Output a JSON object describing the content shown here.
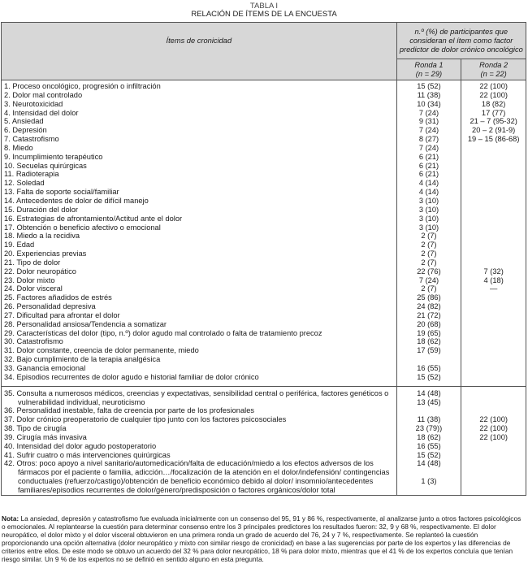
{
  "caption": {
    "label": "TABLA I",
    "title": "RELACIÓN DE ÍTEMS DE LA ENCUESTA"
  },
  "header": {
    "items_col": "Ítems de cronicidad",
    "group_col": "n.º  (%) de participantes que consideran el ítem como factor predictor de dolor crónico oncológico",
    "ronda1": "Ronda 1\n(n = 29)",
    "ronda2": "Ronda 2\n(n = 22)"
  },
  "section1": [
    {
      "item": "1.  Proceso oncológico, progresión o infiltración",
      "r1": "15 (52)",
      "r2": "22 (100)"
    },
    {
      "item": "2.  Dolor mal controlado",
      "r1": "11 (38)",
      "r2": "22 (100)"
    },
    {
      "item": "3.  Neurotoxicidad",
      "r1": "10 (34)",
      "r2": "18 (82)"
    },
    {
      "item": "4.  Intensidad del dolor",
      "r1": "7 (24)",
      "r2": "17 (77)"
    },
    {
      "item": "5.  Ansiedad",
      "r1": "9 (31)",
      "r2": "21 – 7 (95-32)"
    },
    {
      "item": "6.  Depresión",
      "r1": "7 (24)",
      "r2": "20 – 2 (91-9)"
    },
    {
      "item": "7.  Catastrofismo",
      "r1": "8 (27)",
      "r2": "19 – 15 (86-68)"
    },
    {
      "item": "8.  Miedo",
      "r1": "7 (24)",
      "r2": ""
    },
    {
      "item": "9.  Incumplimiento terapéutico",
      "r1": "6 (21)",
      "r2": ""
    },
    {
      "item": "10.  Secuelas quirúrgicas",
      "r1": "6 (21)",
      "r2": ""
    },
    {
      "item": "11.  Radioterapia",
      "r1": "6 (21)",
      "r2": ""
    },
    {
      "item": "12.  Soledad",
      "r1": "4 (14)",
      "r2": ""
    },
    {
      "item": "13.  Falta de soporte social/familiar",
      "r1": "4 (14)",
      "r2": ""
    },
    {
      "item": "14.  Antecedentes de dolor de difícil manejo",
      "r1": "3 (10)",
      "r2": ""
    },
    {
      "item": "15.  Duración del dolor",
      "r1": "3 (10)",
      "r2": ""
    },
    {
      "item": "16.  Estrategias de afrontamiento/Actitud ante el dolor",
      "r1": "3 (10)",
      "r2": ""
    },
    {
      "item": "17.  Obtención o beneficio afectivo o emocional",
      "r1": "3 (10)",
      "r2": ""
    },
    {
      "item": "18.  Miedo a la recidiva",
      "r1": "2 (7)",
      "r2": ""
    },
    {
      "item": "19.  Edad",
      "r1": "2 (7)",
      "r2": ""
    },
    {
      "item": "20.  Experiencias previas",
      "r1": "2 (7)",
      "r2": ""
    },
    {
      "item": "21.  Tipo de dolor",
      "r1": "2 (7)",
      "r2": ""
    },
    {
      "item": "22.  Dolor neuropático",
      "r1": "22 (76)",
      "r2": "7 (32)"
    },
    {
      "item": "23.  Dolor mixto",
      "r1": "7 (24)",
      "r2": "4 (18)"
    },
    {
      "item": "24.  Dolor visceral",
      "r1": "2 (7)",
      "r2": "—"
    },
    {
      "item": "25.  Factores añadidos de estrés",
      "r1": "25 (86)",
      "r2": ""
    },
    {
      "item": "26.  Personalidad depresiva",
      "r1": "24 (82)",
      "r2": ""
    },
    {
      "item": "27.  Dificultad para afrontar el dolor",
      "r1": "21 (72)",
      "r2": ""
    },
    {
      "item": "28.  Personalidad ansiosa/Tendencia a somatizar",
      "r1": "20 (68)",
      "r2": ""
    },
    {
      "item": "29.  Características del dolor (tipo, n.º) dolor agudo mal controlado o falta de tratamiento precoz",
      "r1": "19 (65)",
      "r2": ""
    },
    {
      "item": "30.  Catastrofismo",
      "r1": "18 (62)",
      "r2": ""
    },
    {
      "item": "31.  Dolor constante, creencia de dolor permanente, miedo",
      "r1": "17 (59)",
      "r2": ""
    },
    {
      "item": "32.  Bajo cumplimiento de la terapia analgésica",
      "r1": "",
      "r2": ""
    },
    {
      "item": "33.  Ganancia emocional",
      "r1": "16 (55)",
      "r2": ""
    },
    {
      "item": "34.  Episodios recurrentes de dolor agudo e historial familiar de dolor crónico",
      "r1": "15 (52)",
      "r2": ""
    }
  ],
  "section2": [
    {
      "item": "35.  Consulta a numerosos médicos, creencias y expectativas, sensibilidad central o periférica, factores genéticos o vulnerabilidad individual, neuroticismo",
      "r1": "14 (48)\n13 (45)",
      "r2": ""
    },
    {
      "item": "36.  Personalidad inestable, falta de creencia por parte de los profesionales",
      "r1": "",
      "r2": ""
    },
    {
      "item": "37.  Dolor crónico preoperatorio de cualquier tipo junto con los factores psicosociales",
      "r1": "11 (38)",
      "r2": "22 (100)"
    },
    {
      "item": "38.  Tipo de cirugía",
      "r1": "23 (79))",
      "r2": "22 (100)"
    },
    {
      "item": "39.  Cirugía más invasiva",
      "r1": "18 (62)",
      "r2": "22 (100)"
    },
    {
      "item": "40.  Intensidad del dolor agudo postoperatorio",
      "r1": "16 (55)",
      "r2": ""
    },
    {
      "item": "41.  Sufrir cuatro o más intervenciones quirúrgicas",
      "r1": "15 (52)",
      "r2": ""
    },
    {
      "item": "42.  Otros: poco apoyo a nivel sanitario/automedicación/falta de educación/miedo a los efectos adversos de los fármacos por el paciente o familia, adicción…/focalización de la atención en el dolor/indefensión/ contingencias conductuales (refuerzo/castigo)/obtención de beneficio económico debido al dolor/ insomnio/antecedentes familiares/episodios  recurrentes de dolor/género/predisposición o factores orgánicos/dolor total",
      "r1": "14 (48)\n\n1 (3)",
      "r2": ""
    }
  ],
  "note": {
    "label": "Nota:",
    "text": " La ansiedad, depresión y catastrofismo fue evaluada inicialmente con un consenso del 95, 91 y 86 %, respectivamente, al analizarse junto a otros factores psicológicos o emocionales. Al replantearse la cuestión para determinar consenso entre los 3 principales predictores los resultados fueron: 32, 9 y 68 %, respectivamente. El dolor neuropático, el dolor mixto y el dolor visceral obtuvieron en una primera ronda un grado de acuerdo del 76, 24 y 7 %, respectivamente. Se replanteó la cuestión proporcionando una opción alternativa (dolor neuropático y mixto con similar riesgo de cronicidad) en base a las sugerencias por parte de los expertos y las diferencias de criterios entre ellos. De este modo se obtuvo un acuerdo del 32 % para dolor neuropático, 18 % para dolor mixto, mientras que el 41 % de los expertos concluía que tenían riesgo similar. Un 9 % de los expertos no se definió en sentido alguno en esta pregunta."
  }
}
